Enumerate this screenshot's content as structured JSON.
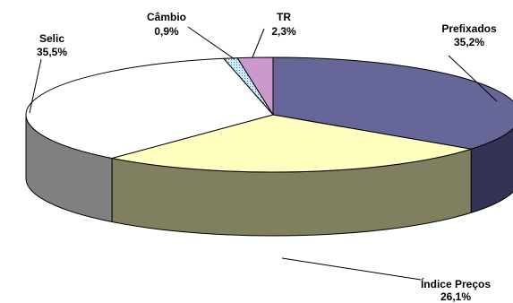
{
  "chart_data": {
    "type": "pie",
    "three_d": true,
    "legend": "none",
    "slices": [
      {
        "label": "Prefixados",
        "value_label": "35,2%",
        "value": 35.2,
        "color": "#666699",
        "side_color": "#333355"
      },
      {
        "label": "Índice Preços",
        "value_label": "26,1%",
        "value": 26.1,
        "color": "#FFFFC0",
        "side_color": "#808060"
      },
      {
        "label": "Selic",
        "value_label": "35,5%",
        "value": 35.5,
        "color": "#FFFFFF",
        "side_color": "#808080"
      },
      {
        "label": "Câmbio",
        "value_label": "0,9%",
        "value": 0.9,
        "color": "#CCECFF",
        "side_color": "#6A8A9A"
      },
      {
        "label": "TR",
        "value_label": "2,3%",
        "value": 2.3,
        "color": "#CC99CC",
        "side_color": "#664D66"
      }
    ]
  }
}
